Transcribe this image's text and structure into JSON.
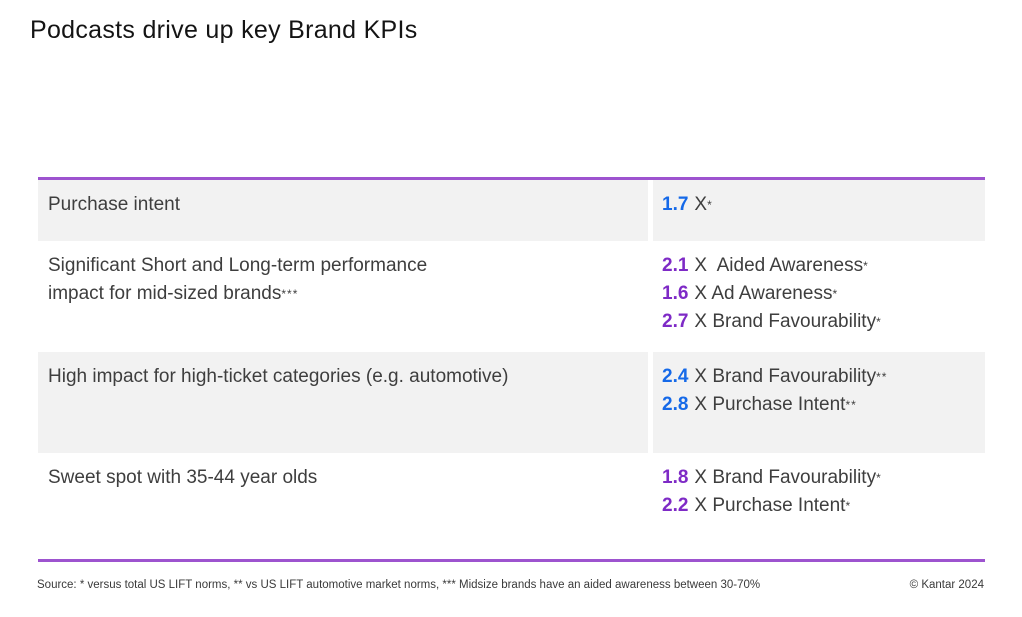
{
  "title": "Podcasts drive up key Brand KPIs",
  "colors": {
    "blue": "#1569E8",
    "purple": "#7E2AC6",
    "border": "#9D53CF",
    "shade": "#F2F2F2",
    "text": "#3E3E3E"
  },
  "table": {
    "rows": [
      {
        "left": "Purchase intent",
        "kpis": [
          {
            "value": "1.7",
            "color": "blue",
            "label": "X",
            "ast": "*"
          }
        ]
      },
      {
        "left": "Significant Short and Long-term performance\nimpact for mid-sized brands",
        "left_ast": "***",
        "kpis": [
          {
            "value": "2.1",
            "color": "purple",
            "label": "X  Aided Awareness",
            "ast": "*"
          },
          {
            "value": "1.6",
            "color": "purple",
            "label": "X Ad Awareness",
            "ast": "*"
          },
          {
            "value": "2.7",
            "color": "purple",
            "label": "X Brand Favourability",
            "ast": "*"
          }
        ]
      },
      {
        "left": "High impact for high-ticket categories (e.g. automotive)",
        "kpis": [
          {
            "value": "2.4",
            "color": "blue",
            "label": "X Brand Favourability",
            "ast": "**"
          },
          {
            "value": "2.8",
            "color": "blue",
            "label": "X Purchase Intent",
            "ast": "**"
          }
        ]
      },
      {
        "left": "Sweet spot with 35-44 year olds",
        "kpis": [
          {
            "value": "1.8",
            "color": "purple",
            "label": "X Brand Favourability",
            "ast": "*"
          },
          {
            "value": "2.2",
            "color": "purple",
            "label": "X Purchase Intent",
            "ast": "*"
          }
        ]
      }
    ]
  },
  "footer": {
    "source": "Source: * versus total US LIFT norms, ** vs US LIFT automotive market norms, *** Midsize brands have an aided awareness between 30-70%",
    "copyright": "© Kantar 2024"
  }
}
